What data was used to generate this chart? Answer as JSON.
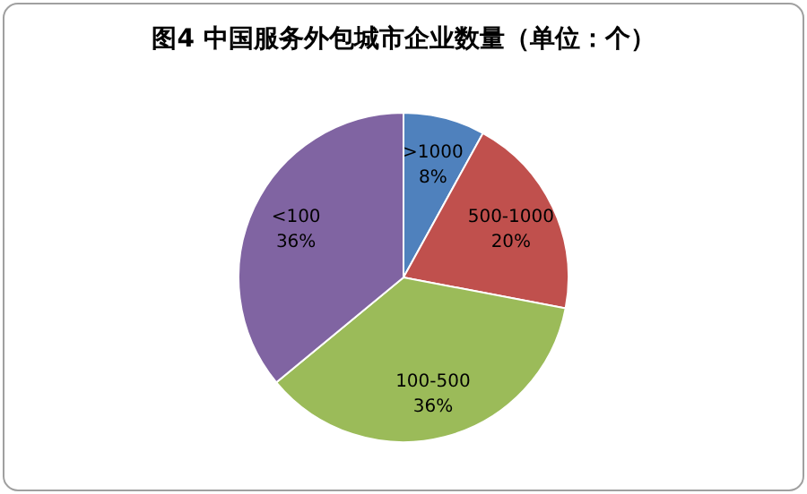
{
  "chart_data": {
    "type": "pie",
    "title": "图4  中国服务外包城市企业数量（单位：个）",
    "categories": [
      ">1000",
      "500-1000",
      "100-500",
      "<100"
    ],
    "values": [
      8,
      20,
      36,
      36
    ],
    "colors": [
      "#4f81bd",
      "#c0504d",
      "#9bbb59",
      "#8064a2"
    ],
    "value_labels": [
      "8%",
      "20%",
      "36%",
      "36%"
    ]
  }
}
